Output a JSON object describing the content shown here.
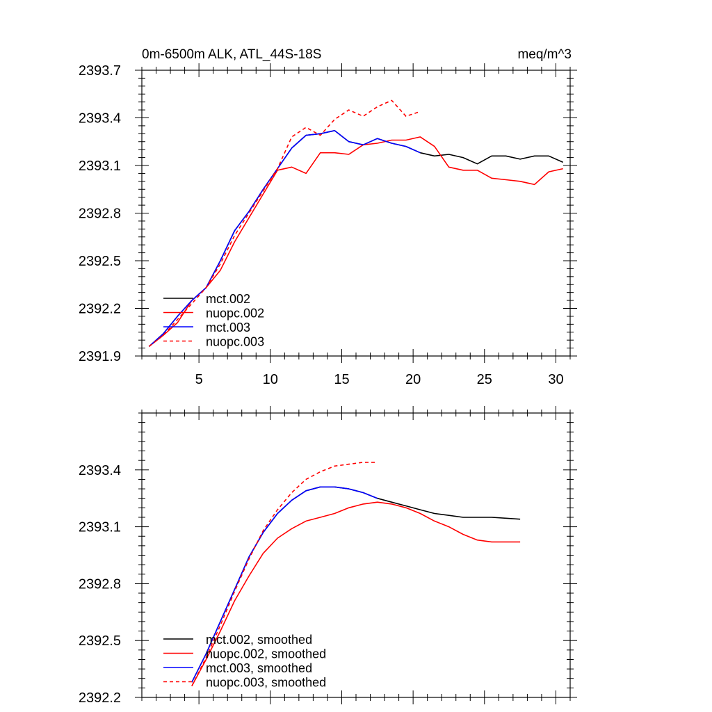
{
  "chart_data": [
    {
      "type": "line",
      "title": "0m-6500m ALK, ATL_44S-18S",
      "subtitle": "meq/m^3",
      "xlabel": "",
      "ylabel": "",
      "xlim": [
        1,
        31
      ],
      "ylim": [
        2391.9,
        2393.7
      ],
      "x_ticks": [
        5,
        10,
        15,
        20,
        25,
        30
      ],
      "x_tick_labels": [
        "5",
        "10",
        "15",
        "20",
        "25",
        "30"
      ],
      "y_ticks": [
        2391.9,
        2392.2,
        2392.5,
        2392.8,
        2393.1,
        2393.4,
        2393.7
      ],
      "y_tick_labels": [
        "2391.9",
        "2392.2",
        "2392.5",
        "2392.8",
        "2393.1",
        "2393.4",
        "2393.7"
      ],
      "grid": false,
      "legend_position": "bottom-left",
      "series": [
        {
          "name": "mct.002",
          "color": "#000000",
          "dash": "solid",
          "x": [
            1.5,
            2.5,
            3.5,
            4.5,
            5.5,
            6.5,
            7.5,
            8.5,
            9.5,
            10.5,
            11.5,
            12.5,
            13.5,
            14.5,
            15.5,
            16.5,
            17.5,
            18.5,
            19.5,
            20.5,
            21.5,
            22.5,
            23.5,
            24.5,
            25.5,
            26.5,
            27.5,
            28.5,
            29.5,
            30.5
          ],
          "values": [
            2391.96,
            2392.04,
            2392.15,
            2392.25,
            2392.33,
            2392.5,
            2392.69,
            2392.81,
            2392.95,
            2393.08,
            2393.21,
            2393.29,
            2393.3,
            2393.32,
            2393.25,
            2393.23,
            2393.27,
            2393.24,
            2393.22,
            2393.18,
            2393.16,
            2393.17,
            2393.15,
            2393.11,
            2393.16,
            2393.16,
            2393.14,
            2393.16,
            2393.16,
            2393.12
          ]
        },
        {
          "name": "nuopc.002",
          "color": "#ff0000",
          "dash": "solid",
          "x": [
            1.5,
            2.5,
            3.5,
            4.5,
            5.5,
            6.5,
            7.5,
            8.5,
            9.5,
            10.5,
            11.5,
            12.5,
            13.5,
            14.5,
            15.5,
            16.5,
            17.5,
            18.5,
            19.5,
            20.5,
            21.5,
            22.5,
            23.5,
            24.5,
            25.5,
            26.5,
            27.5,
            28.5,
            29.5,
            30.5
          ],
          "values": [
            2391.96,
            2392.03,
            2392.11,
            2392.25,
            2392.33,
            2392.44,
            2392.62,
            2392.77,
            2392.92,
            2393.07,
            2393.09,
            2393.05,
            2393.18,
            2393.18,
            2393.17,
            2393.23,
            2393.24,
            2393.26,
            2393.26,
            2393.28,
            2393.22,
            2393.09,
            2393.07,
            2393.07,
            2393.02,
            2393.01,
            2393.0,
            2392.98,
            2393.06,
            2393.08
          ]
        },
        {
          "name": "mct.003",
          "color": "#0000ff",
          "dash": "solid",
          "x": [
            1.5,
            2.5,
            3.5,
            4.5,
            5.5,
            6.5,
            7.5,
            8.5,
            9.5,
            10.5,
            11.5,
            12.5,
            13.5,
            14.5,
            15.5,
            16.5,
            17.5,
            18.5,
            19.5,
            20.5
          ],
          "values": [
            2391.96,
            2392.04,
            2392.15,
            2392.25,
            2392.33,
            2392.5,
            2392.69,
            2392.81,
            2392.95,
            2393.08,
            2393.21,
            2393.29,
            2393.3,
            2393.32,
            2393.25,
            2393.23,
            2393.27,
            2393.24,
            2393.22,
            2393.18
          ]
        },
        {
          "name": "nuopc.003",
          "color": "#ff0000",
          "dash": "dashed",
          "x": [
            1.5,
            2.5,
            3.5,
            4.5,
            5.5,
            6.5,
            7.5,
            8.5,
            9.5,
            10.5,
            11.5,
            12.5,
            13.5,
            14.5,
            15.5,
            16.5,
            17.5,
            18.5,
            19.5,
            20.5
          ],
          "values": [
            2391.96,
            2392.03,
            2392.13,
            2392.23,
            2392.33,
            2392.48,
            2392.66,
            2392.8,
            2392.94,
            2393.08,
            2393.28,
            2393.34,
            2393.29,
            2393.39,
            2393.45,
            2393.41,
            2393.47,
            2393.51,
            2393.41,
            2393.44
          ]
        }
      ]
    },
    {
      "type": "line",
      "title": "",
      "xlabel": "",
      "ylabel": "",
      "xlim": [
        1,
        31
      ],
      "ylim": [
        2392.2,
        2393.7
      ],
      "x_ticks": [
        5,
        10,
        15,
        20,
        25,
        30
      ],
      "x_tick_labels": [],
      "y_ticks": [
        2392.2,
        2392.5,
        2392.8,
        2393.1,
        2393.4
      ],
      "y_tick_labels": [
        "2392.2",
        "2392.5",
        "2392.8",
        "2393.1",
        "2393.4"
      ],
      "grid": false,
      "legend_position": "bottom-left",
      "series": [
        {
          "name": "mct.002, smoothed",
          "color": "#000000",
          "dash": "solid",
          "x": [
            4.5,
            5.5,
            6.5,
            7.5,
            8.5,
            9.5,
            10.5,
            11.5,
            12.5,
            13.5,
            14.5,
            15.5,
            16.5,
            17.5,
            18.5,
            19.5,
            20.5,
            21.5,
            22.5,
            23.5,
            24.5,
            25.5,
            26.5,
            27.5
          ],
          "values": [
            2392.28,
            2392.43,
            2392.6,
            2392.77,
            2392.94,
            2393.07,
            2393.17,
            2393.24,
            2393.29,
            2393.31,
            2393.31,
            2393.3,
            2393.28,
            2393.25,
            2393.23,
            2393.21,
            2393.19,
            2393.17,
            2393.16,
            2393.15,
            2393.15,
            2393.15,
            2393.145,
            2393.14
          ]
        },
        {
          "name": "nuopc.002, smoothed",
          "color": "#ff0000",
          "dash": "solid",
          "x": [
            4.5,
            5.5,
            6.5,
            7.5,
            8.5,
            9.5,
            10.5,
            11.5,
            12.5,
            13.5,
            14.5,
            15.5,
            16.5,
            17.5,
            18.5,
            19.5,
            20.5,
            21.5,
            22.5,
            23.5,
            24.5,
            25.5,
            26.5,
            27.5
          ],
          "values": [
            2392.26,
            2392.4,
            2392.55,
            2392.71,
            2392.84,
            2392.96,
            2393.04,
            2393.09,
            2393.13,
            2393.15,
            2393.17,
            2393.2,
            2393.22,
            2393.23,
            2393.22,
            2393.2,
            2393.17,
            2393.13,
            2393.1,
            2393.06,
            2393.03,
            2393.02,
            2393.02,
            2393.02
          ]
        },
        {
          "name": "mct.003, smoothed",
          "color": "#0000ff",
          "dash": "solid",
          "x": [
            4.5,
            5.5,
            6.5,
            7.5,
            8.5,
            9.5,
            10.5,
            11.5,
            12.5,
            13.5,
            14.5,
            15.5,
            16.5,
            17.5
          ],
          "values": [
            2392.28,
            2392.43,
            2392.6,
            2392.77,
            2392.94,
            2393.07,
            2393.17,
            2393.24,
            2393.29,
            2393.31,
            2393.31,
            2393.3,
            2393.28,
            2393.25
          ]
        },
        {
          "name": "nuopc.003, smoothed",
          "color": "#ff0000",
          "dash": "dashed",
          "x": [
            4.5,
            5.5,
            6.5,
            7.5,
            8.5,
            9.5,
            10.5,
            11.5,
            12.5,
            13.5,
            14.5,
            15.5,
            16.5,
            17.5
          ],
          "values": [
            2392.26,
            2392.41,
            2392.58,
            2392.76,
            2392.93,
            2393.08,
            2393.19,
            2393.28,
            2393.35,
            2393.39,
            2393.42,
            2393.43,
            2393.44,
            2393.44
          ]
        }
      ]
    }
  ]
}
